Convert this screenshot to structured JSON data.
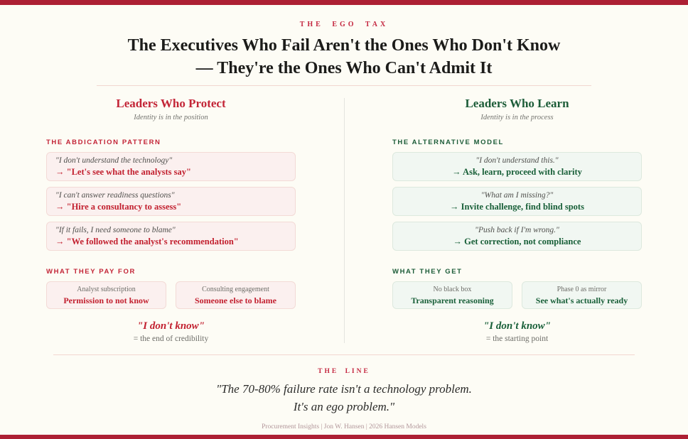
{
  "header": {
    "eyebrow": "THE EGO TAX",
    "title_line1": "The Executives Who Fail Aren't the Ones Who Don't Know",
    "title_line2": "— They're the Ones Who Can't Admit It"
  },
  "colors": {
    "accent_red": "#c2202f",
    "accent_green": "#185f38",
    "bar_red": "#ad2034",
    "background": "#fdfcf5"
  },
  "left_column": {
    "header": "Leaders Who Protect",
    "subtitle": "Identity is in the position",
    "section1_label": "THE ABDICATION PATTERN",
    "cards": [
      {
        "quote": "\"I don't understand the technology\"",
        "action": "→ \"Let's see what the analysts say\""
      },
      {
        "quote": "\"I can't answer readiness questions\"",
        "action": "→ \"Hire a consultancy to assess\""
      },
      {
        "quote": "\"If it fails, I need someone to blame\"",
        "action": "→ \"We followed the analyst's recommendation\""
      }
    ],
    "section2_label": "WHAT THEY PAY FOR",
    "pair_cards": [
      {
        "top": "Analyst subscription",
        "bottom": "Permission to not know"
      },
      {
        "top": "Consulting engagement",
        "bottom": "Someone else to blame"
      }
    ],
    "verdict_quote": "\"I don't know\"",
    "verdict_sub": "= the end of credibility"
  },
  "right_column": {
    "header": "Leaders Who Learn",
    "subtitle": "Identity is in the process",
    "section1_label": "THE ALTERNATIVE MODEL",
    "cards": [
      {
        "quote": "\"I don't understand this.\"",
        "action": "→ Ask, learn, proceed with clarity"
      },
      {
        "quote": "\"What am I missing?\"",
        "action": "→ Invite challenge, find blind spots"
      },
      {
        "quote": "\"Push back if I'm wrong.\"",
        "action": "→ Get correction, not compliance"
      }
    ],
    "section2_label": "WHAT THEY GET",
    "pair_cards": [
      {
        "top": "No black box",
        "bottom": "Transparent reasoning"
      },
      {
        "top": "Phase 0 as mirror",
        "bottom": "See what's actually ready"
      }
    ],
    "verdict_quote": "\"I don't know\"",
    "verdict_sub": "= the starting point"
  },
  "bottom": {
    "eyebrow": "THE LINE",
    "quote_line1": "\"The 70-80% failure rate isn't a technology problem.",
    "quote_line2": "It's an ego problem.\"",
    "footer": "Procurement Insights | Jon W. Hansen | 2026 Hansen Models"
  }
}
